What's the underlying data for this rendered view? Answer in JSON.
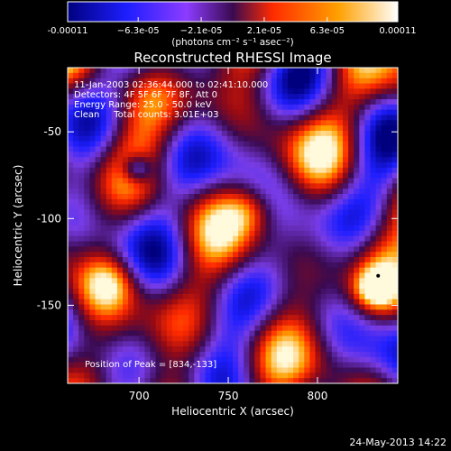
{
  "chart_data": {
    "type": "heatmap",
    "title": "Reconstructed RHESSI Image",
    "xlabel": "Heliocentric X (arcsec)",
    "ylabel": "Heliocentric Y (arcsec)",
    "xlim": [
      660,
      845
    ],
    "ylim": [
      -195,
      -13
    ],
    "x_ticks": [
      700,
      750,
      800
    ],
    "y_ticks": [
      -50,
      -100,
      -150
    ],
    "colorbar": {
      "range": [
        -0.00011,
        0.00011
      ],
      "tick_values": [
        -0.00011,
        -6.3e-05,
        -2.1e-05,
        2.1e-05,
        6.3e-05,
        0.00011
      ],
      "tick_labels": [
        "-0.00011",
        "−6.3e-05",
        "−2.1e-05",
        "2.1e-05",
        "6.3e-05",
        "0.00011"
      ],
      "unit_label": "(photons cm⁻² s⁻¹ asec⁻²)",
      "colors": [
        "#00007f",
        "#1e1eff",
        "#8c3cff",
        "#ffffff",
        "#ff2a00",
        "#ffa000",
        "#ffffff"
      ]
    },
    "annotations": {
      "time_range": "11-Jan-2003 02:36:44.000 to 02:41:10.000",
      "detectors": "Detectors: 4F 5F 6F 7F 8F, Att 0",
      "energy_range": "Energy Range: 25.0 - 50.0 keV",
      "method_counts": "Clean     Total counts: 3.01E+03",
      "peak": "Position of Peak = [834,-133]"
    },
    "peak_position": [
      834,
      -133
    ],
    "grid": false
  },
  "footer": {
    "date": "24-May-2013 14:22"
  }
}
